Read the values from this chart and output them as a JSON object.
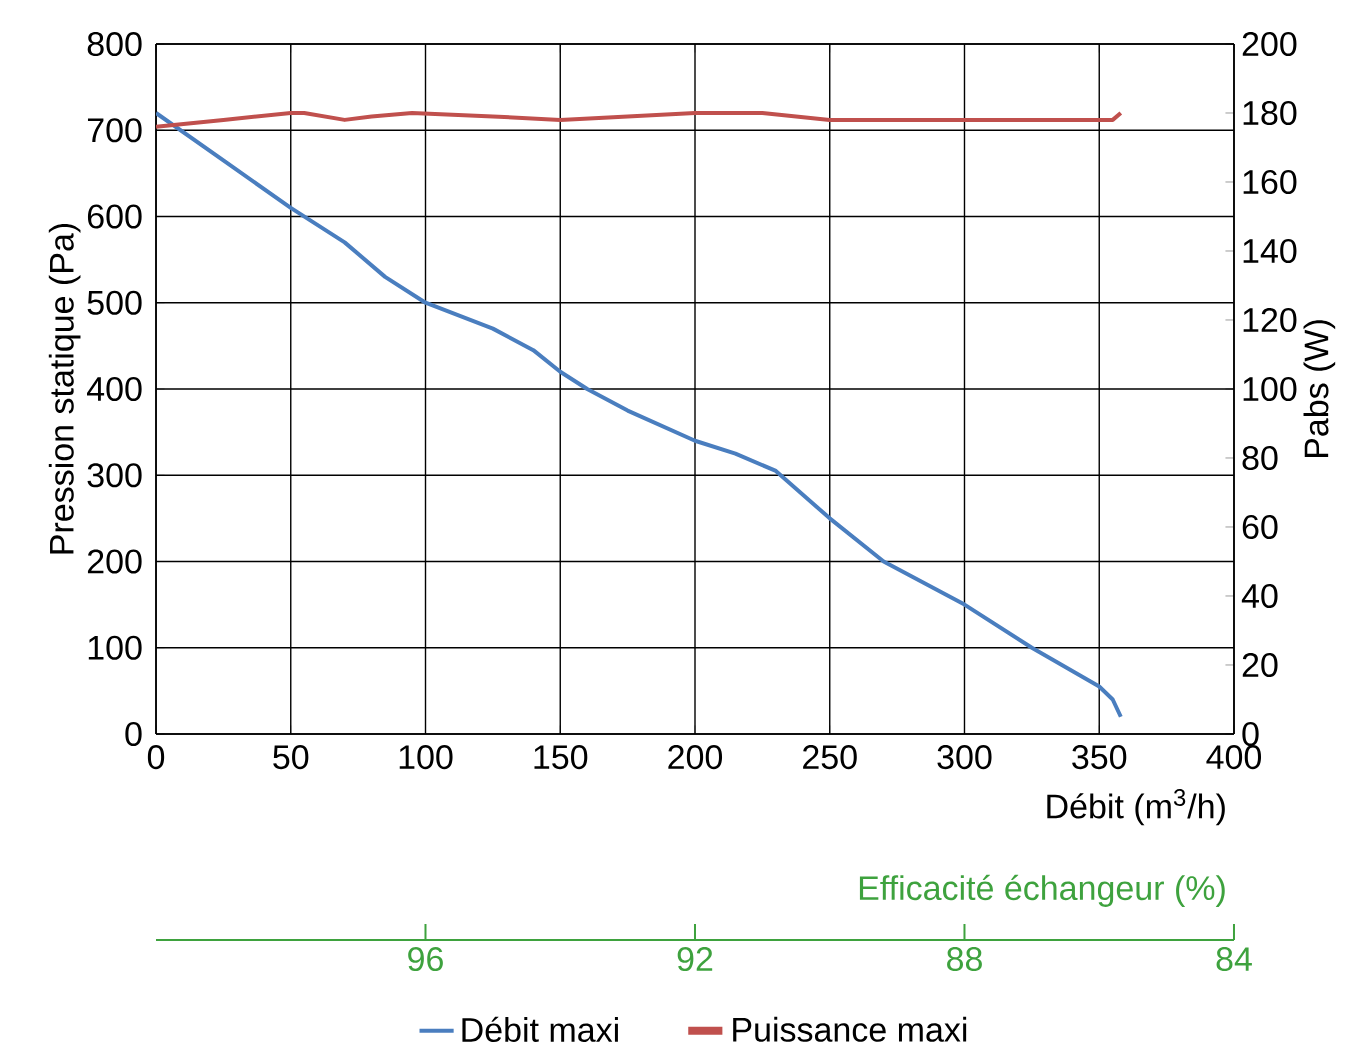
{
  "chart_data": {
    "type": "line",
    "xlabel": "Débit (m$^{3}$/h)",
    "ylabel": "Pression statique (Pa)",
    "y2label": "Pabs (W)",
    "x2label": "Efficacité échangeur (%)",
    "xlim": [
      0,
      400
    ],
    "xticks": [
      0,
      50,
      100,
      150,
      200,
      250,
      300,
      350,
      400
    ],
    "ylim": [
      0,
      800
    ],
    "yticks": [
      0,
      100,
      200,
      300,
      400,
      500,
      600,
      700,
      800
    ],
    "y2lim": [
      0,
      200
    ],
    "y2ticks": [
      0,
      20,
      40,
      60,
      80,
      100,
      120,
      140,
      160,
      180,
      200
    ],
    "x2lim": [
      100,
      84
    ],
    "x2ticks": [
      96,
      92,
      88,
      84
    ],
    "grid": true,
    "legend": "bottom",
    "line_style": "solid",
    "marker": "none",
    "series": [
      {
        "name": "Débit maxi",
        "color": "#4a7ebf",
        "x": [
          0,
          25,
          50,
          70,
          85,
          100,
          125,
          140,
          150,
          160,
          175,
          200,
          215,
          230,
          250,
          270,
          300,
          325,
          350,
          355,
          358
        ],
        "values": [
          720,
          665,
          610,
          570,
          530,
          500,
          470,
          445,
          420,
          400,
          375,
          340,
          325,
          305,
          250,
          200,
          150,
          100,
          55,
          40,
          20
        ]
      },
      {
        "name": "Puissance maxi",
        "color": "#c0504d",
        "axis": "y2",
        "x": [
          0,
          25,
          50,
          55,
          70,
          80,
          95,
          125,
          150,
          175,
          200,
          225,
          250,
          300,
          350,
          355,
          358
        ],
        "values": [
          176,
          178,
          180,
          180,
          178,
          179,
          180,
          179,
          178,
          179,
          180,
          180,
          178,
          178,
          178,
          178,
          180
        ]
      }
    ]
  }
}
